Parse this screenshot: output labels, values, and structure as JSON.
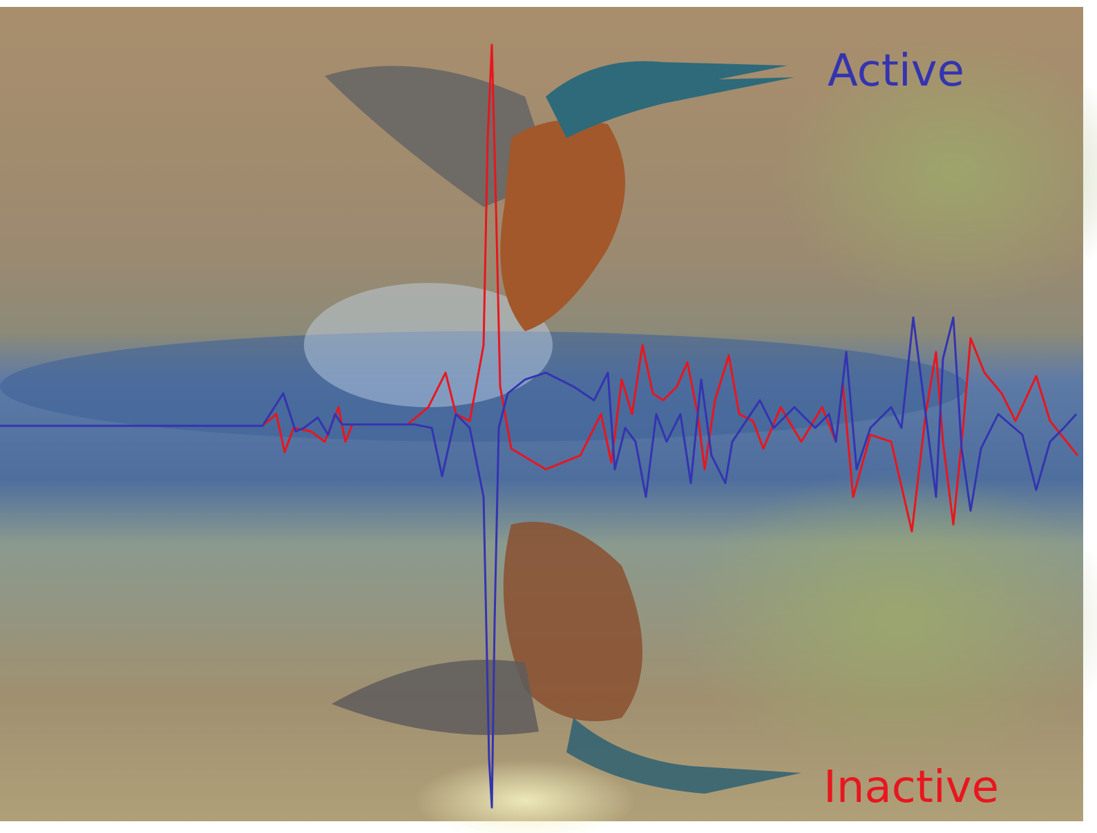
{
  "labels": {
    "active": "Active",
    "inactive": "Inactive"
  }
}
